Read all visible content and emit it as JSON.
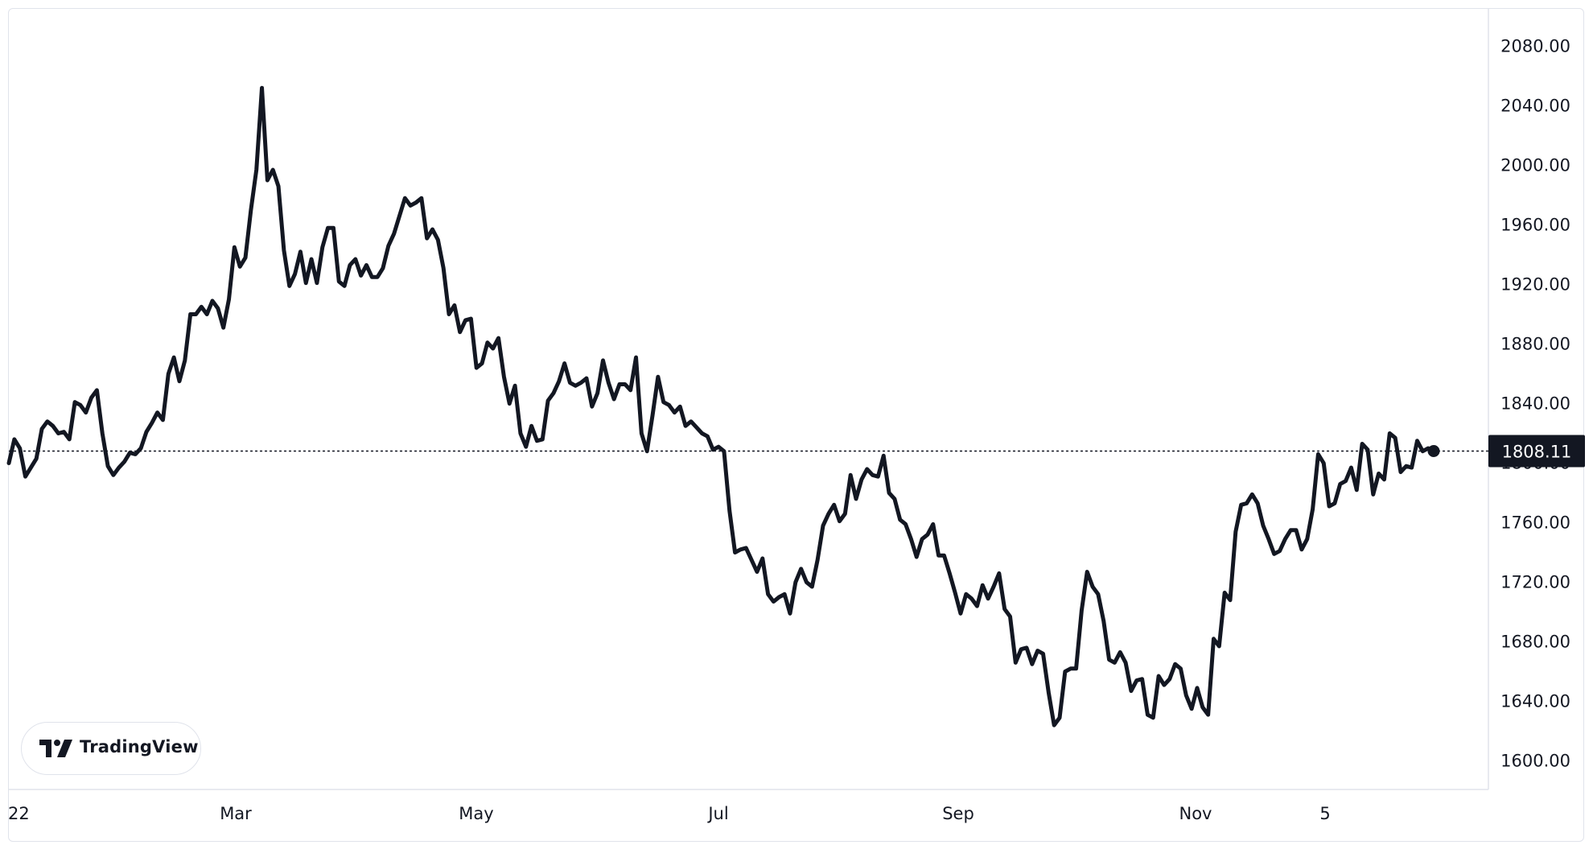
{
  "chart_data": {
    "type": "line",
    "x_ticks": [
      "22",
      "Mar",
      "May",
      "Jul",
      "Sep",
      "Nov",
      "5"
    ],
    "y_ticks": [
      "2080.00",
      "2040.00",
      "2000.00",
      "1960.00",
      "1920.00",
      "1880.00",
      "1840.00",
      "1800.00",
      "1760.00",
      "1720.00",
      "1680.00",
      "1640.00",
      "1600.00"
    ],
    "ylim": [
      1580,
      2100
    ],
    "last_price_label": "1808.11",
    "last_price": 1808.11,
    "series": [
      {
        "values": [
          1800,
          1816,
          1810,
          1791,
          1797,
          1803,
          1823,
          1828,
          1825,
          1820,
          1821,
          1816,
          1841,
          1839,
          1834,
          1844,
          1849,
          1820,
          1798,
          1792,
          1797,
          1801,
          1807,
          1806,
          1810,
          1821,
          1827,
          1834,
          1829,
          1860,
          1871,
          1855,
          1869,
          1900,
          1900,
          1905,
          1900,
          1909,
          1904,
          1891,
          1910,
          1945,
          1932,
          1938,
          1970,
          1997,
          2052,
          1990,
          1997,
          1986,
          1943,
          1919,
          1927,
          1942,
          1921,
          1937,
          1921,
          1945,
          1958,
          1958,
          1922,
          1919,
          1933,
          1937,
          1926,
          1933,
          1925,
          1925,
          1931,
          1946,
          1954,
          1966,
          1978,
          1973,
          1975,
          1978,
          1951,
          1957,
          1950,
          1931,
          1900,
          1906,
          1888,
          1896,
          1897,
          1864,
          1867,
          1881,
          1877,
          1884,
          1858,
          1840,
          1852,
          1820,
          1811,
          1825,
          1815,
          1816,
          1842,
          1847,
          1855,
          1867,
          1854,
          1852,
          1854,
          1857,
          1838,
          1847,
          1869,
          1854,
          1843,
          1853,
          1853,
          1849,
          1871,
          1820,
          1808,
          1832,
          1858,
          1841,
          1839,
          1834,
          1838,
          1825,
          1828,
          1824,
          1820,
          1818,
          1809,
          1811,
          1808,
          1768,
          1740,
          1742,
          1743,
          1735,
          1727,
          1736,
          1712,
          1707,
          1710,
          1712,
          1699,
          1720,
          1729,
          1720,
          1717,
          1735,
          1758,
          1766,
          1772,
          1761,
          1766,
          1792,
          1776,
          1789,
          1796,
          1792,
          1791,
          1805,
          1780,
          1776,
          1762,
          1759,
          1749,
          1737,
          1749,
          1752,
          1759,
          1738,
          1738,
          1726,
          1713,
          1699,
          1712,
          1709,
          1704,
          1718,
          1709,
          1717,
          1726,
          1702,
          1697,
          1666,
          1675,
          1676,
          1665,
          1674,
          1672,
          1646,
          1624,
          1629,
          1660,
          1662,
          1662,
          1701,
          1727,
          1717,
          1712,
          1694,
          1668,
          1666,
          1673,
          1666,
          1647,
          1654,
          1655,
          1631,
          1629,
          1657,
          1651,
          1655,
          1665,
          1662,
          1644,
          1635,
          1649,
          1636,
          1631,
          1682,
          1677,
          1713,
          1708,
          1754,
          1772,
          1773,
          1779,
          1773,
          1758,
          1749,
          1739,
          1741,
          1749,
          1755,
          1755,
          1742,
          1749,
          1769,
          1806,
          1800,
          1771,
          1773,
          1786,
          1788,
          1797,
          1782,
          1813,
          1809,
          1779,
          1793,
          1789,
          1820,
          1817,
          1794,
          1798,
          1797,
          1815,
          1808,
          1810,
          1808.11
        ]
      }
    ],
    "grid": false
  },
  "branding": {
    "logo_text": "TradingView"
  }
}
